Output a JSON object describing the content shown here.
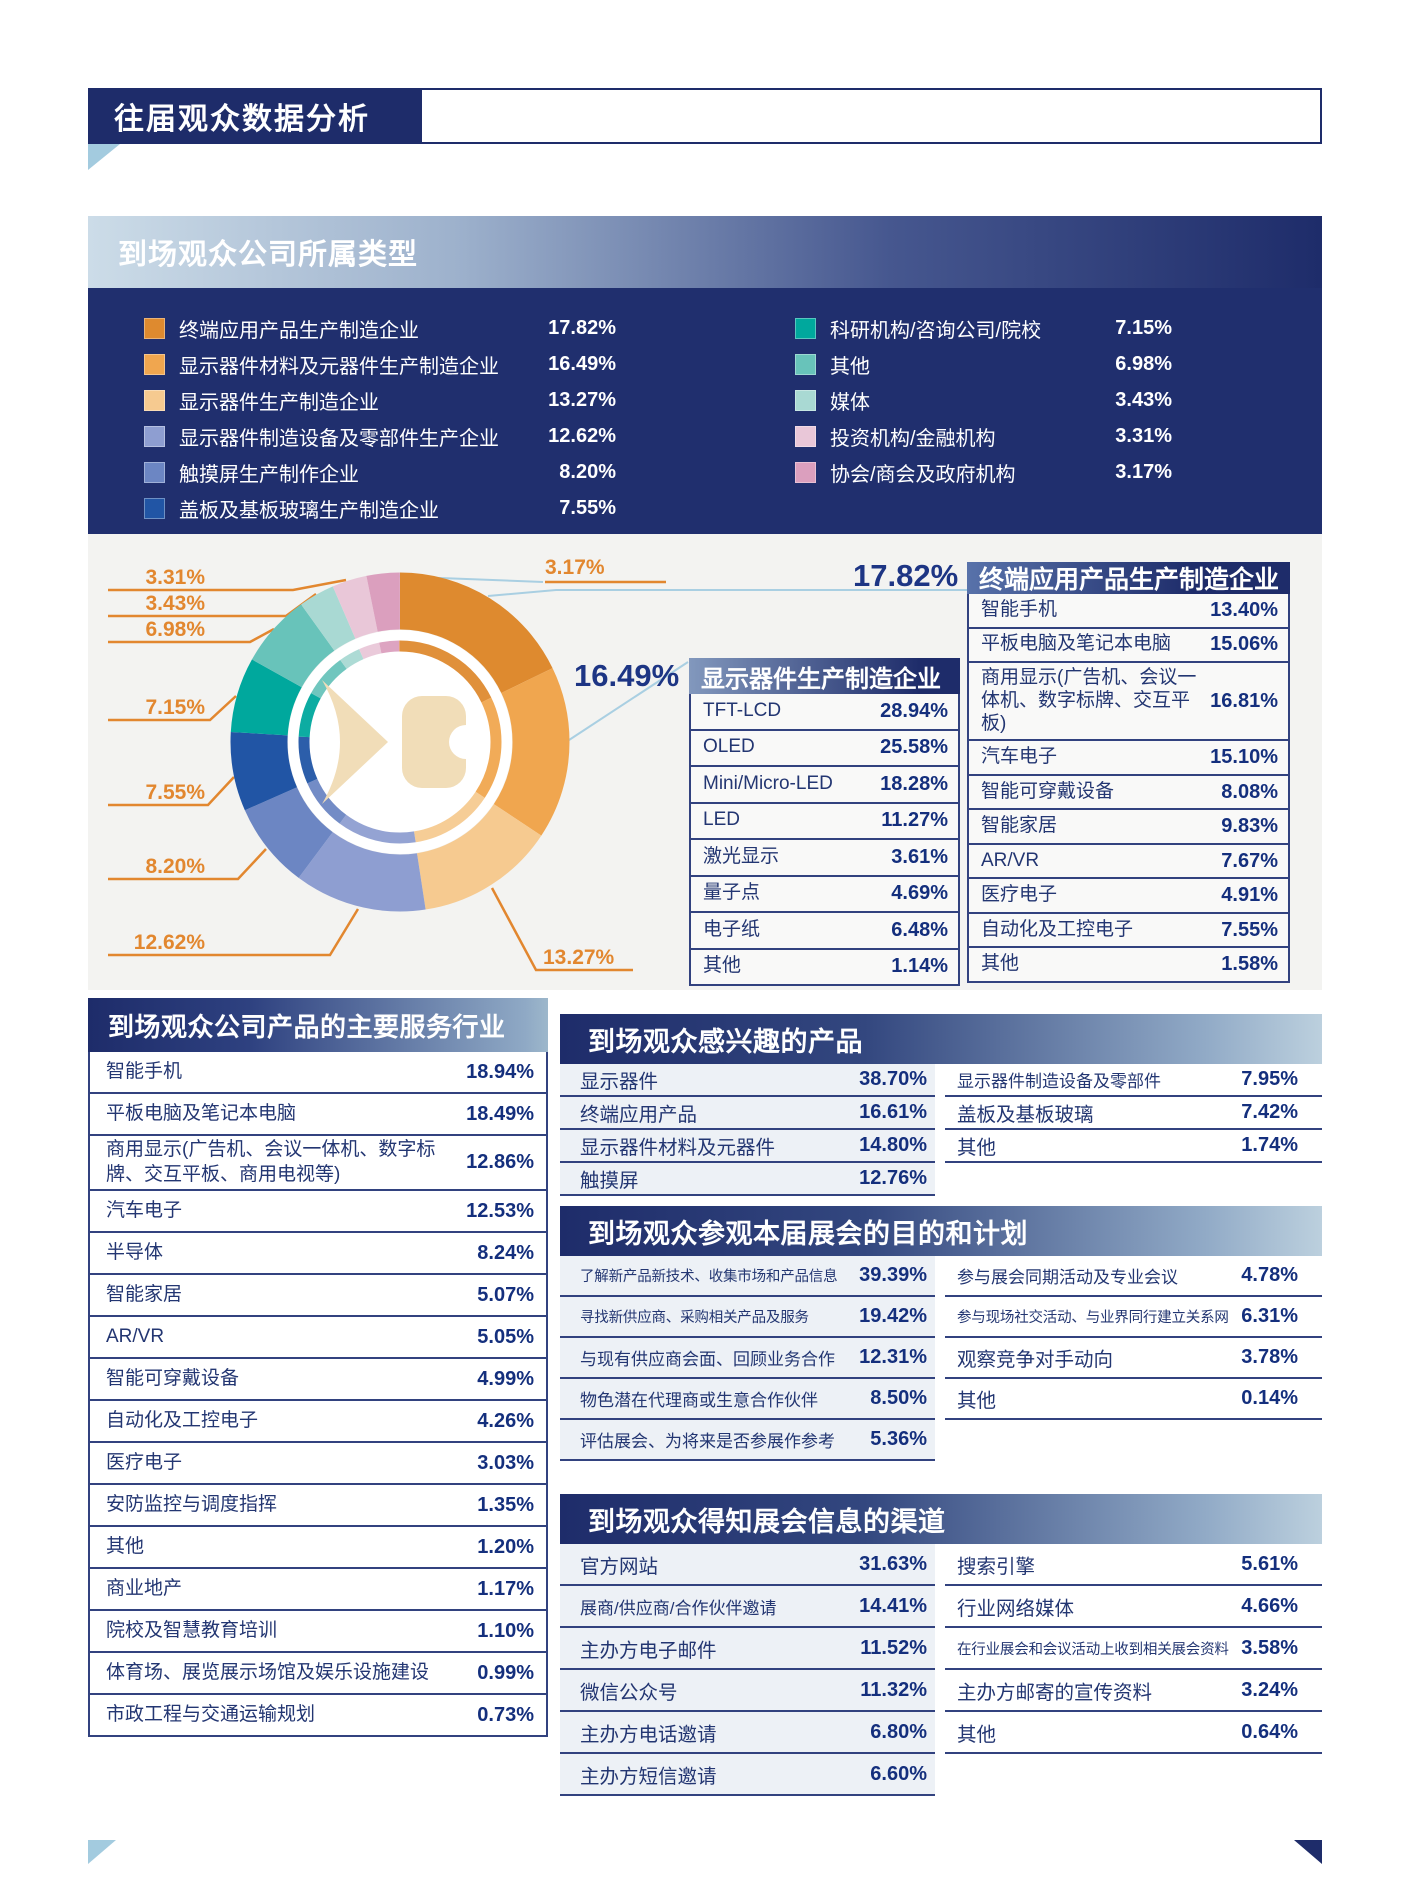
{
  "page": {
    "title": "往届观众数据分析"
  },
  "colors": {
    "navy": "#1e2c6a",
    "panel_navy": "#202f6e",
    "panel_gray": "#f3f3f1",
    "value_navy": "#142f7d",
    "label_navy": "#233672",
    "callout_orange": "#e2872f",
    "leader_blue": "#a9cfe2",
    "logo_cream": "#f1ddb8",
    "row_shade": "#edf1f6"
  },
  "company_type": {
    "title": "到场观众公司所属类型"
  },
  "chart_data": {
    "type": "pie",
    "subtype": "donut",
    "title": "到场观众公司所属类型",
    "unit": "%",
    "legend_position": "top",
    "segments": [
      {
        "label": "终端应用产品生产制造企业",
        "value": 17.82,
        "color": "#DE8A2F"
      },
      {
        "label": "显示器件材料及元器件生产制造企业",
        "value": 16.49,
        "color": "#F0A64F"
      },
      {
        "label": "显示器件生产制造企业",
        "value": 13.27,
        "color": "#F6CA90"
      },
      {
        "label": "显示器件制造设备及零部件生产企业",
        "value": 12.62,
        "color": "#8E9ED1"
      },
      {
        "label": "触摸屏生产制作企业",
        "value": 8.2,
        "color": "#6C86C3"
      },
      {
        "label": "盖板及基板玻璃生产制造企业",
        "value": 7.55,
        "color": "#2155A5"
      },
      {
        "label": "科研机构/咨询公司/院校",
        "value": 7.15,
        "color": "#00A89D"
      },
      {
        "label": "其他",
        "value": 6.98,
        "color": "#68C3BA"
      },
      {
        "label": "媒体",
        "value": 3.43,
        "color": "#A9D9D3"
      },
      {
        "label": "投资机构/金融机构",
        "value": 3.31,
        "color": "#E9C7D8"
      },
      {
        "label": "协会/商会及政府机构",
        "value": 3.17,
        "color": "#DB9FBE"
      }
    ]
  },
  "tables": {
    "display_manufacturers": {
      "title": "显示器件生产制造企业",
      "rows": [
        {
          "label": "TFT-LCD",
          "value": 28.94
        },
        {
          "label": "OLED",
          "value": 25.58
        },
        {
          "label": "Mini/Micro-LED",
          "value": 18.28
        },
        {
          "label": "LED",
          "value": 11.27
        },
        {
          "label": "激光显示",
          "value": 3.61
        },
        {
          "label": "量子点",
          "value": 4.69
        },
        {
          "label": "电子纸",
          "value": 6.48
        },
        {
          "label": "其他",
          "value": 1.14
        }
      ]
    },
    "end_products": {
      "title": "终端应用产品生产制造企业",
      "rows": [
        {
          "label": "智能手机",
          "value": 13.4
        },
        {
          "label": "平板电脑及笔记本电脑",
          "value": 15.06
        },
        {
          "label": "商用显示(广告机、会议一体机、数字标牌、交互平板)",
          "value": 16.81
        },
        {
          "label": "汽车电子",
          "value": 15.1
        },
        {
          "label": "智能可穿戴设备",
          "value": 8.08
        },
        {
          "label": "智能家居",
          "value": 9.83
        },
        {
          "label": "AR/VR",
          "value": 7.67
        },
        {
          "label": "医疗电子",
          "value": 4.91
        },
        {
          "label": "自动化及工控电子",
          "value": 7.55
        },
        {
          "label": "其他",
          "value": 1.58
        }
      ]
    }
  },
  "sections": {
    "service_industries": {
      "title": "到场观众公司产品的主要服务行业",
      "rows": [
        {
          "label": "智能手机",
          "value": 18.94
        },
        {
          "label": "平板电脑及笔记本电脑",
          "value": 18.49
        },
        {
          "label": "商用显示(广告机、会议一体机、数字标牌、交互平板、商用电视等)",
          "value": 12.86
        },
        {
          "label": "汽车电子",
          "value": 12.53
        },
        {
          "label": "半导体",
          "value": 8.24
        },
        {
          "label": "智能家居",
          "value": 5.07
        },
        {
          "label": "AR/VR",
          "value": 5.05
        },
        {
          "label": "智能可穿戴设备",
          "value": 4.99
        },
        {
          "label": "自动化及工控电子",
          "value": 4.26
        },
        {
          "label": "医疗电子",
          "value": 3.03
        },
        {
          "label": "安防监控与调度指挥",
          "value": 1.35
        },
        {
          "label": "其他",
          "value": 1.2
        },
        {
          "label": "商业地产",
          "value": 1.17
        },
        {
          "label": "院校及智慧教育培训",
          "value": 1.1
        },
        {
          "label": "体育场、展览展示场馆及娱乐设施建设",
          "value": 0.99
        },
        {
          "label": "市政工程与交通运输规划",
          "value": 0.73
        }
      ]
    },
    "interested_products": {
      "title": "到场观众感兴趣的产品",
      "left": [
        {
          "label": "显示器件",
          "value": 38.7
        },
        {
          "label": "终端应用产品",
          "value": 16.61
        },
        {
          "label": "显示器件材料及元器件",
          "value": 14.8
        },
        {
          "label": "触摸屏",
          "value": 12.76
        }
      ],
      "right": [
        {
          "label": "显示器件制造设备及零部件",
          "value": 7.95
        },
        {
          "label": "盖板及基板玻璃",
          "value": 7.42
        },
        {
          "label": "其他",
          "value": 1.74
        }
      ]
    },
    "visit_purpose": {
      "title": "到场观众参观本届展会的目的和计划",
      "left": [
        {
          "label": "了解新产品新技术、收集市场和产品信息",
          "value": 39.39
        },
        {
          "label": "寻找新供应商、采购相关产品及服务",
          "value": 19.42
        },
        {
          "label": "与现有供应商会面、回顾业务合作",
          "value": 12.31
        },
        {
          "label": "物色潜在代理商或生意合作伙伴",
          "value": 8.5
        },
        {
          "label": "评估展会、为将来是否参展作参考",
          "value": 5.36
        }
      ],
      "right": [
        {
          "label": "参与展会同期活动及专业会议",
          "value": 4.78
        },
        {
          "label": "参与现场社交活动、与业界同行建立关系网",
          "value": 6.31
        },
        {
          "label": "观察竞争对手动向",
          "value": 3.78
        },
        {
          "label": "其他",
          "value": 0.14
        }
      ]
    },
    "info_channels": {
      "title": "到场观众得知展会信息的渠道",
      "left": [
        {
          "label": "官方网站",
          "value": 31.63
        },
        {
          "label": "展商/供应商/合作伙伴邀请",
          "value": 14.41
        },
        {
          "label": "主办方电子邮件",
          "value": 11.52
        },
        {
          "label": "微信公众号",
          "value": 11.32
        },
        {
          "label": "主办方电话邀请",
          "value": 6.8
        },
        {
          "label": "主办方短信邀请",
          "value": 6.6
        }
      ],
      "right": [
        {
          "label": "搜索引擎",
          "value": 5.61
        },
        {
          "label": "行业网络媒体",
          "value": 4.66
        },
        {
          "label": "在行业展会和会议活动上收到相关展会资料",
          "value": 3.58
        },
        {
          "label": "主办方邮寄的宣传资料",
          "value": 3.24
        },
        {
          "label": "其他",
          "value": 0.64
        }
      ]
    }
  }
}
